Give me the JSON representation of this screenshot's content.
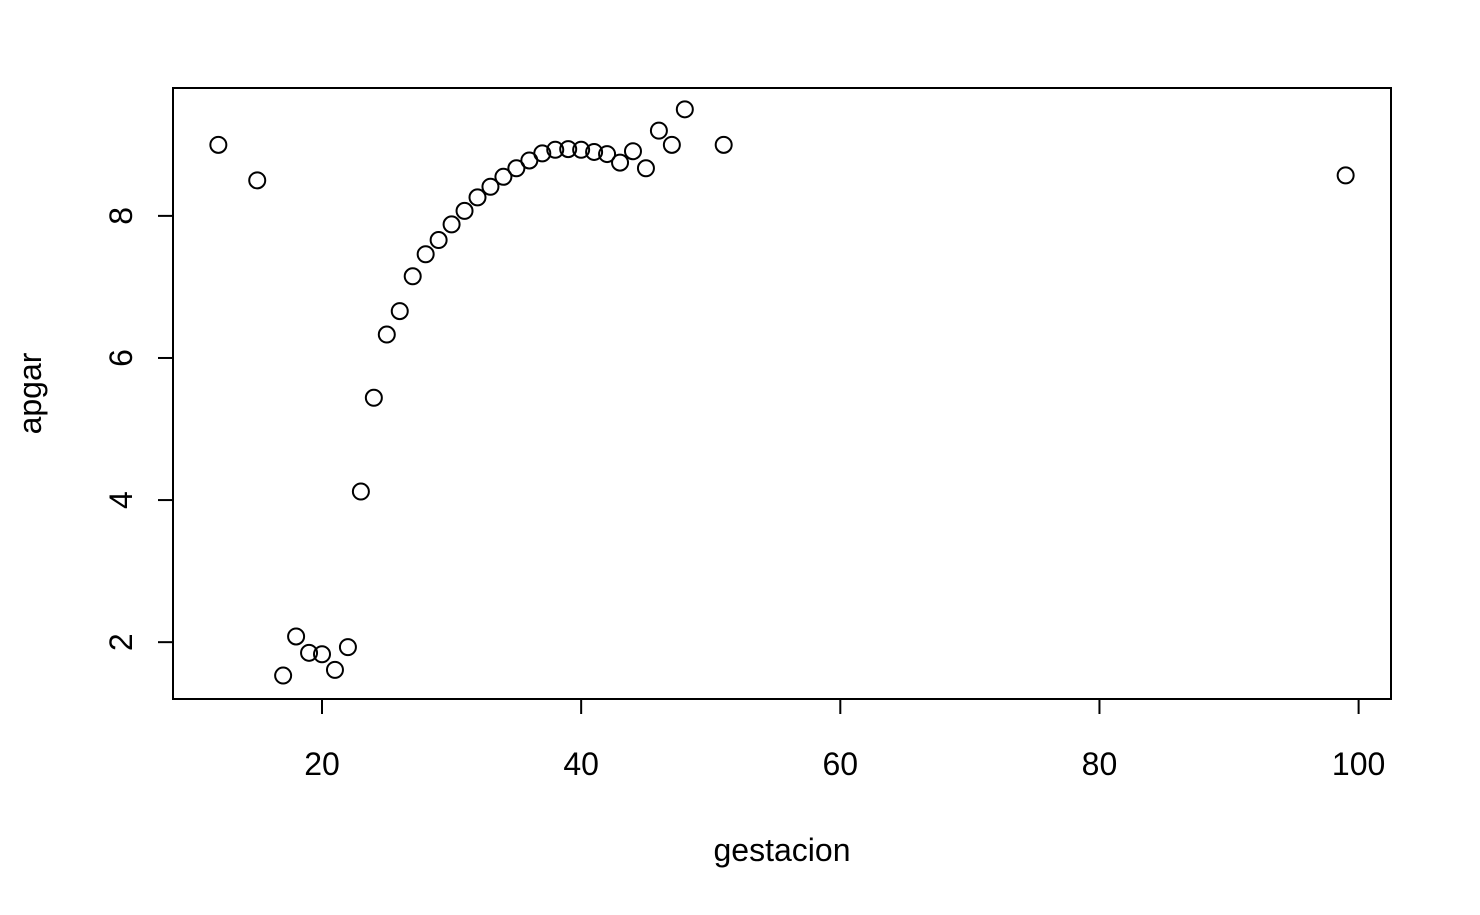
{
  "chart_data": {
    "type": "scatter",
    "title": "",
    "xlabel": "gestacion",
    "ylabel": "apgar",
    "xlim": [
      8.5,
      102.5
    ],
    "ylim": [
      1.2,
      9.8
    ],
    "xticks": [
      20,
      40,
      60,
      80,
      100
    ],
    "yticks": [
      2,
      4,
      6,
      8
    ],
    "grid": false,
    "marker": "open-circle",
    "points": [
      {
        "x": 12,
        "y": 9.0
      },
      {
        "x": 15,
        "y": 8.5
      },
      {
        "x": 17,
        "y": 1.53
      },
      {
        "x": 18,
        "y": 2.08
      },
      {
        "x": 19,
        "y": 1.85
      },
      {
        "x": 20,
        "y": 1.83
      },
      {
        "x": 21,
        "y": 1.61
      },
      {
        "x": 22,
        "y": 1.93
      },
      {
        "x": 23,
        "y": 4.12
      },
      {
        "x": 24,
        "y": 5.44
      },
      {
        "x": 25,
        "y": 6.33
      },
      {
        "x": 26,
        "y": 6.66
      },
      {
        "x": 27,
        "y": 7.15
      },
      {
        "x": 28,
        "y": 7.46
      },
      {
        "x": 29,
        "y": 7.66
      },
      {
        "x": 30,
        "y": 7.88
      },
      {
        "x": 31,
        "y": 8.07
      },
      {
        "x": 32,
        "y": 8.26
      },
      {
        "x": 33,
        "y": 8.41
      },
      {
        "x": 34,
        "y": 8.55
      },
      {
        "x": 35,
        "y": 8.67
      },
      {
        "x": 36,
        "y": 8.78
      },
      {
        "x": 37,
        "y": 8.88
      },
      {
        "x": 38,
        "y": 8.93
      },
      {
        "x": 39,
        "y": 8.94
      },
      {
        "x": 40,
        "y": 8.93
      },
      {
        "x": 41,
        "y": 8.9
      },
      {
        "x": 42,
        "y": 8.87
      },
      {
        "x": 43,
        "y": 8.75
      },
      {
        "x": 44,
        "y": 8.91
      },
      {
        "x": 45,
        "y": 8.67
      },
      {
        "x": 46,
        "y": 9.2
      },
      {
        "x": 47,
        "y": 9.0
      },
      {
        "x": 48,
        "y": 9.5
      },
      {
        "x": 51,
        "y": 9.0
      },
      {
        "x": 99,
        "y": 8.57
      }
    ]
  }
}
